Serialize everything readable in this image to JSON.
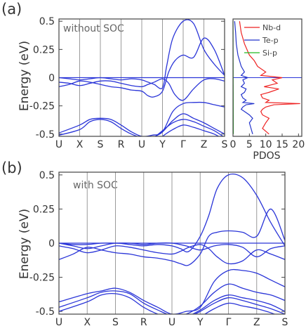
{
  "figure": {
    "panel_a_label": "(a)",
    "panel_b_label": "(b)"
  },
  "chart_data": [
    {
      "type": "line",
      "panel": "a",
      "annotation": "without SOC",
      "ylabel": "Energy (eV)",
      "ylim": [
        -0.52,
        0.52
      ],
      "ytick_labels": [
        "0.5",
        "0.25",
        "0",
        "-0.25",
        "-0.5"
      ],
      "yticks": [
        0.5,
        0.25,
        0,
        -0.25,
        -0.5
      ],
      "kpoint_labels": [
        "U",
        "X",
        "S",
        "R",
        "U",
        "Y",
        "Γ",
        "Z",
        "S"
      ],
      "kpoint_positions": [
        0,
        1,
        2,
        3,
        4,
        5,
        6,
        7,
        8
      ],
      "fermi_level": 0,
      "series": [
        {
          "x": [
            0,
            0.5,
            1,
            1.5,
            2,
            2.5,
            3,
            3.5,
            4,
            4.3,
            4.6,
            5,
            5.2,
            5.5,
            6,
            6.5,
            7,
            7.5,
            8
          ],
          "y": [
            0.0,
            -0.01,
            -0.02,
            -0.01,
            0.0,
            -0.01,
            -0.02,
            -0.01,
            -0.02,
            -0.04,
            -0.06,
            -0.09,
            0.1,
            0.35,
            0.5,
            0.48,
            0.25,
            0.12,
            0.02
          ]
        },
        {
          "x": [
            0,
            0.5,
            1,
            1.5,
            2,
            2.5,
            3,
            3.5,
            4,
            4.3,
            4.6,
            5,
            5.3,
            5.6,
            6,
            6.5,
            7,
            7.5,
            8
          ],
          "y": [
            -0.08,
            -0.06,
            -0.03,
            -0.04,
            -0.06,
            -0.08,
            -0.09,
            -0.11,
            -0.12,
            -0.16,
            -0.17,
            -0.12,
            0.05,
            0.15,
            0.2,
            0.18,
            0.35,
            0.25,
            0.02
          ]
        },
        {
          "x": [
            0,
            0.5,
            1,
            1.5,
            2,
            2.5,
            3,
            3.5,
            4,
            4.3,
            4.6,
            5,
            5.3,
            5.6,
            6,
            6.5,
            7,
            7.5,
            8
          ],
          "y": [
            -0.04,
            -0.05,
            -0.07,
            -0.05,
            -0.03,
            -0.03,
            -0.05,
            -0.07,
            -0.08,
            -0.06,
            -0.04,
            -0.01,
            -0.05,
            -0.15,
            -0.2,
            -0.1,
            -0.02,
            -0.01,
            -0.03
          ]
        },
        {
          "x": [
            0,
            1,
            1.5,
            2,
            2.5,
            3,
            3.5,
            4,
            4.5,
            5,
            5.5,
            6,
            6.5,
            7,
            7.5,
            8
          ],
          "y": [
            -0.49,
            -0.42,
            -0.37,
            -0.36,
            -0.37,
            -0.42,
            -0.48,
            -0.52,
            -0.51,
            -0.48,
            -0.3,
            -0.23,
            -0.22,
            -0.22,
            -0.24,
            -0.26
          ]
        },
        {
          "x": [
            0,
            1,
            1.5,
            2,
            2.5,
            3,
            3.5,
            4,
            4.5,
            5,
            5.5,
            6,
            6.5,
            7,
            7.5,
            8
          ],
          "y": [
            -0.51,
            -0.46,
            -0.39,
            -0.37,
            -0.39,
            -0.45,
            -0.5,
            -0.53,
            -0.53,
            -0.48,
            -0.38,
            -0.32,
            -0.36,
            -0.4,
            -0.45,
            -0.5
          ]
        },
        {
          "x": [
            4.4,
            5,
            5.5,
            6,
            6.5,
            7,
            7.5,
            8
          ],
          "y": [
            -0.56,
            -0.47,
            -0.4,
            -0.37,
            -0.39,
            -0.43,
            -0.47,
            -0.53
          ]
        },
        {
          "x": [
            4.6,
            5,
            5.5,
            6,
            6.5,
            7,
            7.5,
            8
          ],
          "y": [
            -0.58,
            -0.52,
            -0.46,
            -0.42,
            -0.44,
            -0.47,
            -0.5,
            -0.55
          ]
        }
      ]
    },
    {
      "type": "line",
      "panel": "a-pdos",
      "xlabel": "PDOS",
      "xlim": [
        0,
        21
      ],
      "xtick_labels": [
        "0",
        "5",
        "10",
        "15",
        "20"
      ],
      "xticks": [
        0,
        5,
        10,
        15,
        20
      ],
      "ylim": [
        -0.52,
        0.52
      ],
      "legend_position": "top-right",
      "series": [
        {
          "name": "Nb-d",
          "color": "#ee2222",
          "e": [
            0.5,
            0.4,
            0.3,
            0.2,
            0.15,
            0.1,
            0.05,
            0.02,
            0.0,
            -0.02,
            -0.05,
            -0.08,
            -0.1,
            -0.13,
            -0.15,
            -0.18,
            -0.2,
            -0.22,
            -0.23,
            -0.24,
            -0.26,
            -0.28,
            -0.3,
            -0.33,
            -0.36,
            -0.4,
            -0.45,
            -0.5
          ],
          "v": [
            2.0,
            2.5,
            3.5,
            5.0,
            6.5,
            7.5,
            10.0,
            8.5,
            15.0,
            12.0,
            13.5,
            9.5,
            14.0,
            11.0,
            8.5,
            9.0,
            11.0,
            10.0,
            20.5,
            12.5,
            10.0,
            9.0,
            8.5,
            9.0,
            11.0,
            10.0,
            9.0,
            11.0
          ]
        },
        {
          "name": "Te-p",
          "color": "#2233cc",
          "e": [
            0.5,
            0.4,
            0.3,
            0.2,
            0.15,
            0.1,
            0.05,
            0.02,
            0.0,
            -0.02,
            -0.05,
            -0.08,
            -0.1,
            -0.13,
            -0.15,
            -0.18,
            -0.2,
            -0.22,
            -0.23,
            -0.24,
            -0.26,
            -0.28,
            -0.3,
            -0.33,
            -0.36,
            -0.4,
            -0.45,
            -0.5
          ],
          "v": [
            0.5,
            0.8,
            1.0,
            1.5,
            2.0,
            2.5,
            3.5,
            2.5,
            4.5,
            3.0,
            3.5,
            2.5,
            4.0,
            3.5,
            2.5,
            3.0,
            4.0,
            3.0,
            6.5,
            4.0,
            3.0,
            2.5,
            3.5,
            5.0,
            6.0,
            5.0,
            5.5,
            6.0
          ]
        },
        {
          "name": "Si-p",
          "color": "#22bb22",
          "e": [
            0.5,
            0.0,
            -0.5
          ],
          "v": [
            0.0,
            0.05,
            0.1
          ]
        }
      ]
    },
    {
      "type": "line",
      "panel": "b",
      "annotation": "with SOC",
      "ylabel": "Energy (eV)",
      "ylim": [
        -0.52,
        0.52
      ],
      "ytick_labels": [
        "0.5",
        "0.25",
        "0",
        "-0.25",
        "-0.5"
      ],
      "yticks": [
        0.5,
        0.25,
        0,
        -0.25,
        -0.5
      ],
      "kpoint_labels": [
        "U",
        "X",
        "S",
        "R",
        "U",
        "Y",
        "Γ",
        "Z",
        "S"
      ],
      "kpoint_positions": [
        0,
        1,
        2,
        3,
        4,
        5,
        6,
        7,
        8
      ],
      "fermi_level": 0,
      "series": [
        {
          "x": [
            0,
            0.5,
            1,
            1.5,
            2,
            2.5,
            3,
            3.5,
            4,
            4.3,
            4.6,
            5,
            5.3,
            5.6,
            6,
            6.5,
            7,
            7.5,
            8
          ],
          "y": [
            0.0,
            -0.02,
            -0.04,
            -0.02,
            0.0,
            -0.01,
            -0.02,
            -0.01,
            -0.02,
            -0.04,
            -0.06,
            0.05,
            0.2,
            0.4,
            0.5,
            0.48,
            0.35,
            0.15,
            -0.02
          ]
        },
        {
          "x": [
            0,
            0.5,
            1,
            1.5,
            2,
            2.5,
            3,
            3.5,
            4,
            4.3,
            4.6,
            5,
            5.3,
            5.6,
            6,
            6.5,
            7,
            7.5,
            8
          ],
          "y": [
            -0.12,
            -0.08,
            -0.03,
            -0.05,
            -0.07,
            -0.08,
            -0.1,
            -0.11,
            -0.13,
            -0.15,
            -0.16,
            -0.08,
            0.05,
            0.08,
            0.09,
            0.08,
            0.05,
            0.25,
            0.02
          ]
        },
        {
          "x": [
            0,
            0.5,
            1,
            1.5,
            2,
            2.5,
            3,
            3.5,
            4,
            4.3,
            4.6,
            5,
            5.3,
            5.6,
            6,
            6.5,
            7,
            7.5,
            8
          ],
          "y": [
            -0.02,
            -0.04,
            -0.07,
            -0.05,
            -0.02,
            -0.03,
            -0.05,
            -0.07,
            -0.08,
            -0.06,
            -0.03,
            -0.01,
            -0.04,
            -0.1,
            -0.15,
            -0.13,
            -0.05,
            -0.08,
            -0.12
          ]
        },
        {
          "x": [
            0,
            0.5,
            1,
            1.5,
            2,
            2.5,
            3,
            3.5,
            4,
            4.5,
            5,
            5.5,
            6,
            6.5,
            7,
            7.5,
            8
          ],
          "y": [
            0.0,
            -0.01,
            -0.01,
            0.0,
            0.0,
            0.0,
            -0.01,
            0.0,
            0.0,
            -0.02,
            -0.05,
            -0.02,
            -0.01,
            -0.03,
            -0.1,
            -0.04,
            -0.02
          ]
        },
        {
          "x": [
            0,
            1,
            1.5,
            2,
            2.5,
            3,
            3.5,
            4,
            4.5,
            5,
            5.5,
            6,
            6.5,
            7,
            7.5,
            8
          ],
          "y": [
            -0.43,
            -0.37,
            -0.35,
            -0.33,
            -0.36,
            -0.42,
            -0.47,
            -0.52,
            -0.5,
            -0.47,
            -0.28,
            -0.2,
            -0.2,
            -0.22,
            -0.27,
            -0.32
          ]
        },
        {
          "x": [
            0,
            1,
            1.5,
            2,
            2.5,
            3,
            3.5,
            4,
            4.5,
            5,
            5.5,
            6,
            6.5,
            7,
            7.5,
            8
          ],
          "y": [
            -0.47,
            -0.4,
            -0.36,
            -0.35,
            -0.37,
            -0.44,
            -0.49,
            -0.53,
            -0.52,
            -0.46,
            -0.36,
            -0.3,
            -0.33,
            -0.36,
            -0.38,
            -0.42
          ]
        },
        {
          "x": [
            0,
            1,
            1.5,
            2,
            2.5,
            3,
            3.5,
            4,
            4.5,
            5,
            5.5,
            6,
            6.5,
            7,
            7.5,
            8
          ],
          "y": [
            -0.5,
            -0.43,
            -0.38,
            -0.37,
            -0.4,
            -0.47,
            -0.52,
            -0.55,
            -0.54,
            -0.49,
            -0.42,
            -0.38,
            -0.4,
            -0.42,
            -0.45,
            -0.5
          ]
        },
        {
          "x": [
            4.4,
            5,
            5.5,
            6,
            6.5,
            7,
            7.5,
            8
          ],
          "y": [
            -0.56,
            -0.5,
            -0.44,
            -0.4,
            -0.42,
            -0.45,
            -0.48,
            -0.52
          ]
        },
        {
          "x": [
            4.6,
            5,
            5.5,
            6,
            6.5,
            7,
            7.5,
            8
          ],
          "y": [
            -0.58,
            -0.54,
            -0.48,
            -0.44,
            -0.46,
            -0.48,
            -0.51,
            -0.55
          ]
        }
      ]
    }
  ],
  "colors": {
    "band": "#2a35d8",
    "fermi": "#2a35d8",
    "grid": "#9a9a9a",
    "axis": "#444444"
  }
}
